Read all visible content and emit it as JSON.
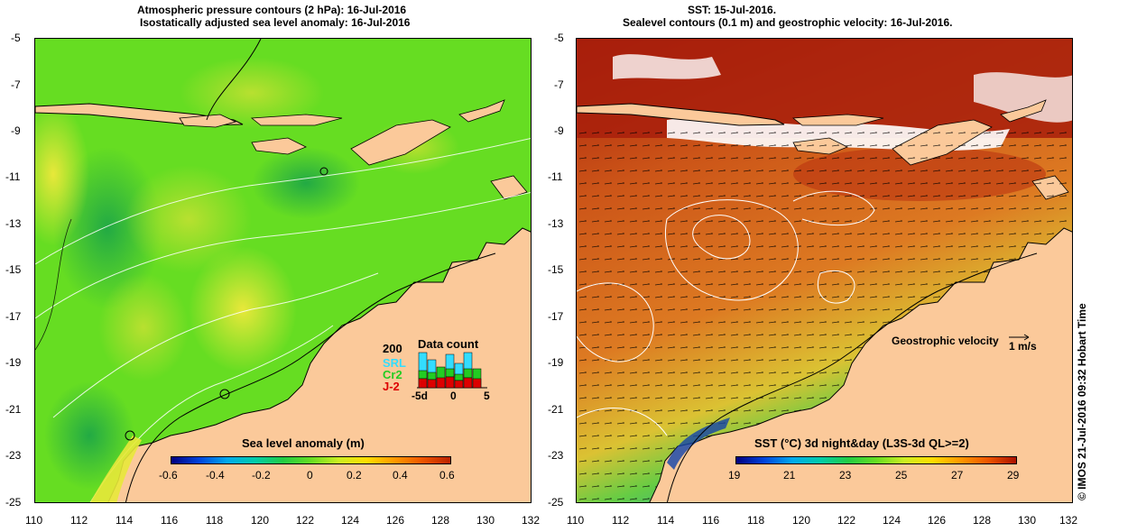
{
  "left_panel": {
    "title_line1": "Atmospheric pressure contours (2 hPa): 16-Jul-2016",
    "title_line2": "Isostatically adjusted sea level anomaly: 16-Jul-2016",
    "colorbar_label": "Sea level anomaly (m)",
    "colorbar_ticks": [
      "-0.6",
      "-0.4",
      "-0.2",
      "0",
      "0.2",
      "0.4",
      "0.6"
    ],
    "colorbar_range": [
      -0.6,
      0.6
    ],
    "data_count": {
      "title": "Data count",
      "max_label": "200",
      "series": [
        "SRL",
        "Cr2",
        "J-2"
      ],
      "series_colors": [
        "#33ddff",
        "#22cc22",
        "#dd0000"
      ],
      "x_ticks": [
        "-5d",
        "0",
        "5"
      ]
    }
  },
  "right_panel": {
    "title_line1": "SST: 15-Jul-2016.",
    "title_line2": "Sealevel contours (0.1 m) and geostrophic velocity: 16-Jul-2016.",
    "colorbar_label": "SST (°C) 3d night&day (L3S-3d QL>=2)",
    "colorbar_ticks": [
      "19",
      "21",
      "23",
      "25",
      "27",
      "29"
    ],
    "colorbar_range": [
      19,
      29
    ],
    "velocity_label": "Geostrophic velocity",
    "velocity_scale": "1 m/s"
  },
  "axes": {
    "lon_ticks": [
      "110",
      "112",
      "114",
      "116",
      "118",
      "120",
      "122",
      "124",
      "126",
      "128",
      "130",
      "132"
    ],
    "lat_ticks": [
      "-5",
      "-7",
      "-9",
      "-11",
      "-13",
      "-15",
      "-17",
      "-19",
      "-21",
      "-23",
      "-25"
    ],
    "lon_range": [
      110,
      132
    ],
    "lat_range": [
      -25,
      -5
    ]
  },
  "copyright": "© IMOS 21-Jul-2016 09:32 Hobart Time",
  "colors": {
    "land": "#fbc99a",
    "sla_bg": "#66dd22",
    "sst_bg": "#d9661a",
    "missing": "#ffffff"
  }
}
